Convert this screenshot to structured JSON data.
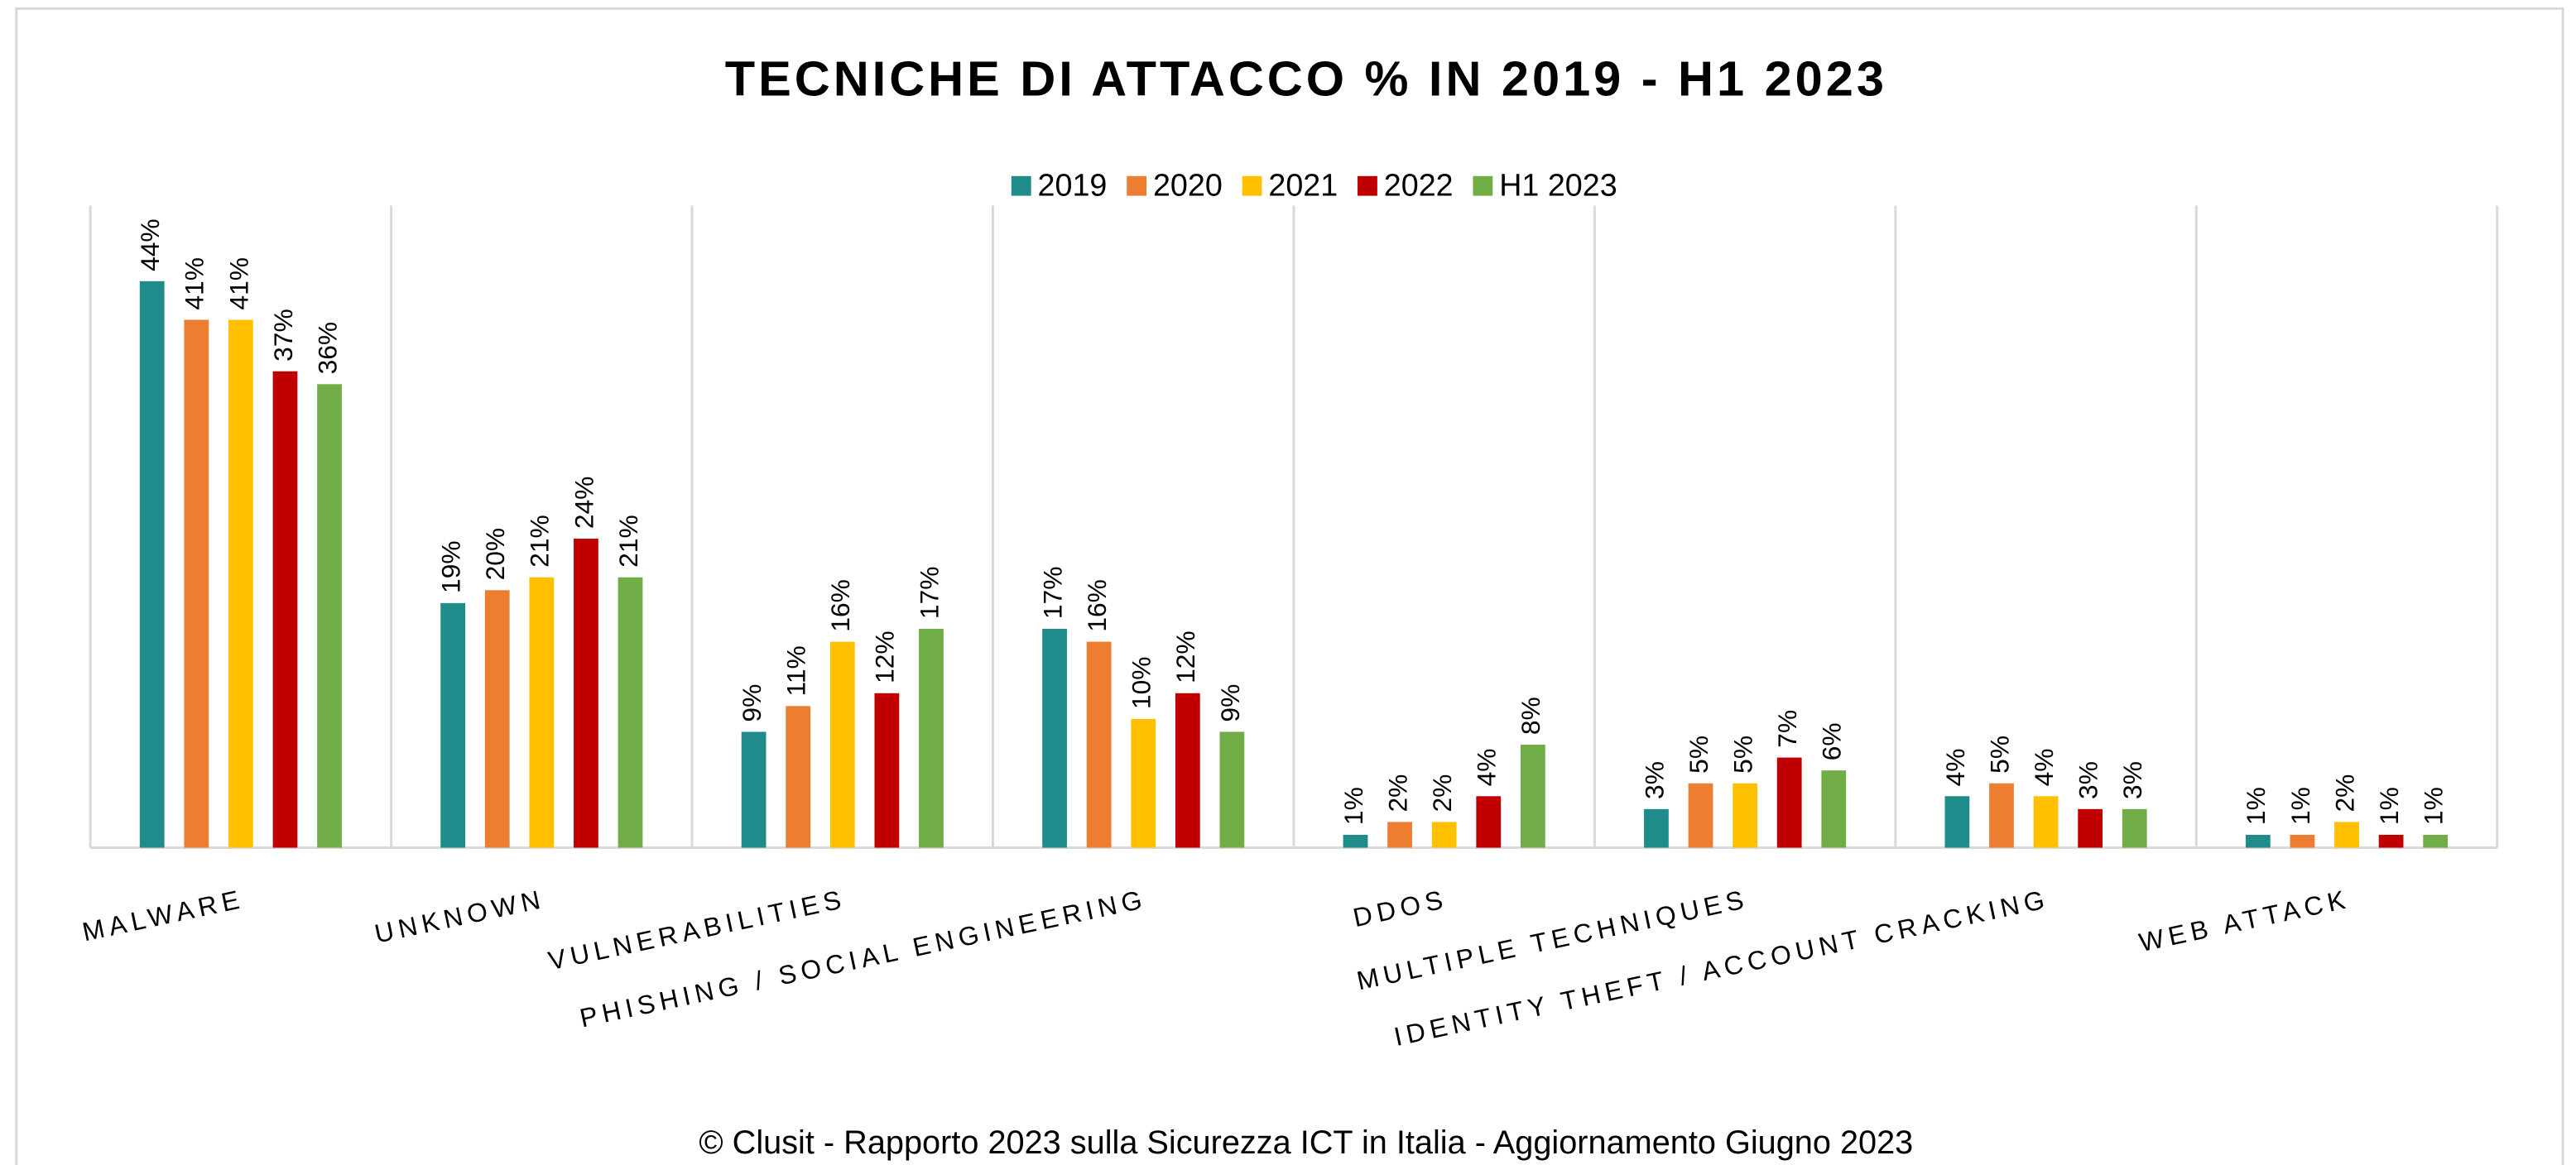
{
  "chart_data": {
    "type": "bar",
    "title": "TECNICHE  DI ATTACCO % IN 2019 - H1 2023",
    "footer": "© Clusit - Rapporto 2023 sulla Sicurezza ICT in Italia - Aggiornamento Giugno 2023",
    "categories": [
      "MALWARE",
      "UNKNOWN",
      "VULNERABILITIES",
      "PHISHING / SOCIAL ENGINEERING",
      "DDOS",
      "MULTIPLE TECHNIQUES",
      "IDENTITY THEFT / ACCOUNT CRACKING",
      "WEB ATTACK"
    ],
    "series": [
      {
        "name": "2019",
        "color": "#1f8b8b",
        "values": [
          44,
          19,
          9,
          17,
          1,
          3,
          4,
          1
        ],
        "value_labels": [
          "44%",
          "19%",
          "9%",
          "17%",
          "1%",
          "3%",
          "4%",
          "1%"
        ]
      },
      {
        "name": "2020",
        "color": "#ed7d31",
        "values": [
          41,
          20,
          11,
          16,
          2,
          5,
          5,
          1
        ],
        "value_labels": [
          "41%",
          "20%",
          "11%",
          "16%",
          "2%",
          "5%",
          "5%",
          "1%"
        ]
      },
      {
        "name": "2021",
        "color": "#ffc000",
        "values": [
          41,
          21,
          16,
          10,
          2,
          5,
          4,
          2
        ],
        "value_labels": [
          "41%",
          "21%",
          "16%",
          "10%",
          "2%",
          "5%",
          "4%",
          "2%"
        ]
      },
      {
        "name": "2022",
        "color": "#c00000",
        "values": [
          37,
          24,
          12,
          12,
          4,
          7,
          3,
          1
        ],
        "value_labels": [
          "37%",
          "24%",
          "12%",
          "12%",
          "4%",
          "7%",
          "3%",
          "1%"
        ]
      },
      {
        "name": "H1 2023",
        "color": "#70ad47",
        "values": [
          36,
          21,
          17,
          9,
          8,
          6,
          3,
          1
        ],
        "value_labels": [
          "36%",
          "21%",
          "17%",
          "9%",
          "8%",
          "6%",
          "3%",
          "1%"
        ]
      }
    ],
    "legend": "top",
    "grid": true
  }
}
